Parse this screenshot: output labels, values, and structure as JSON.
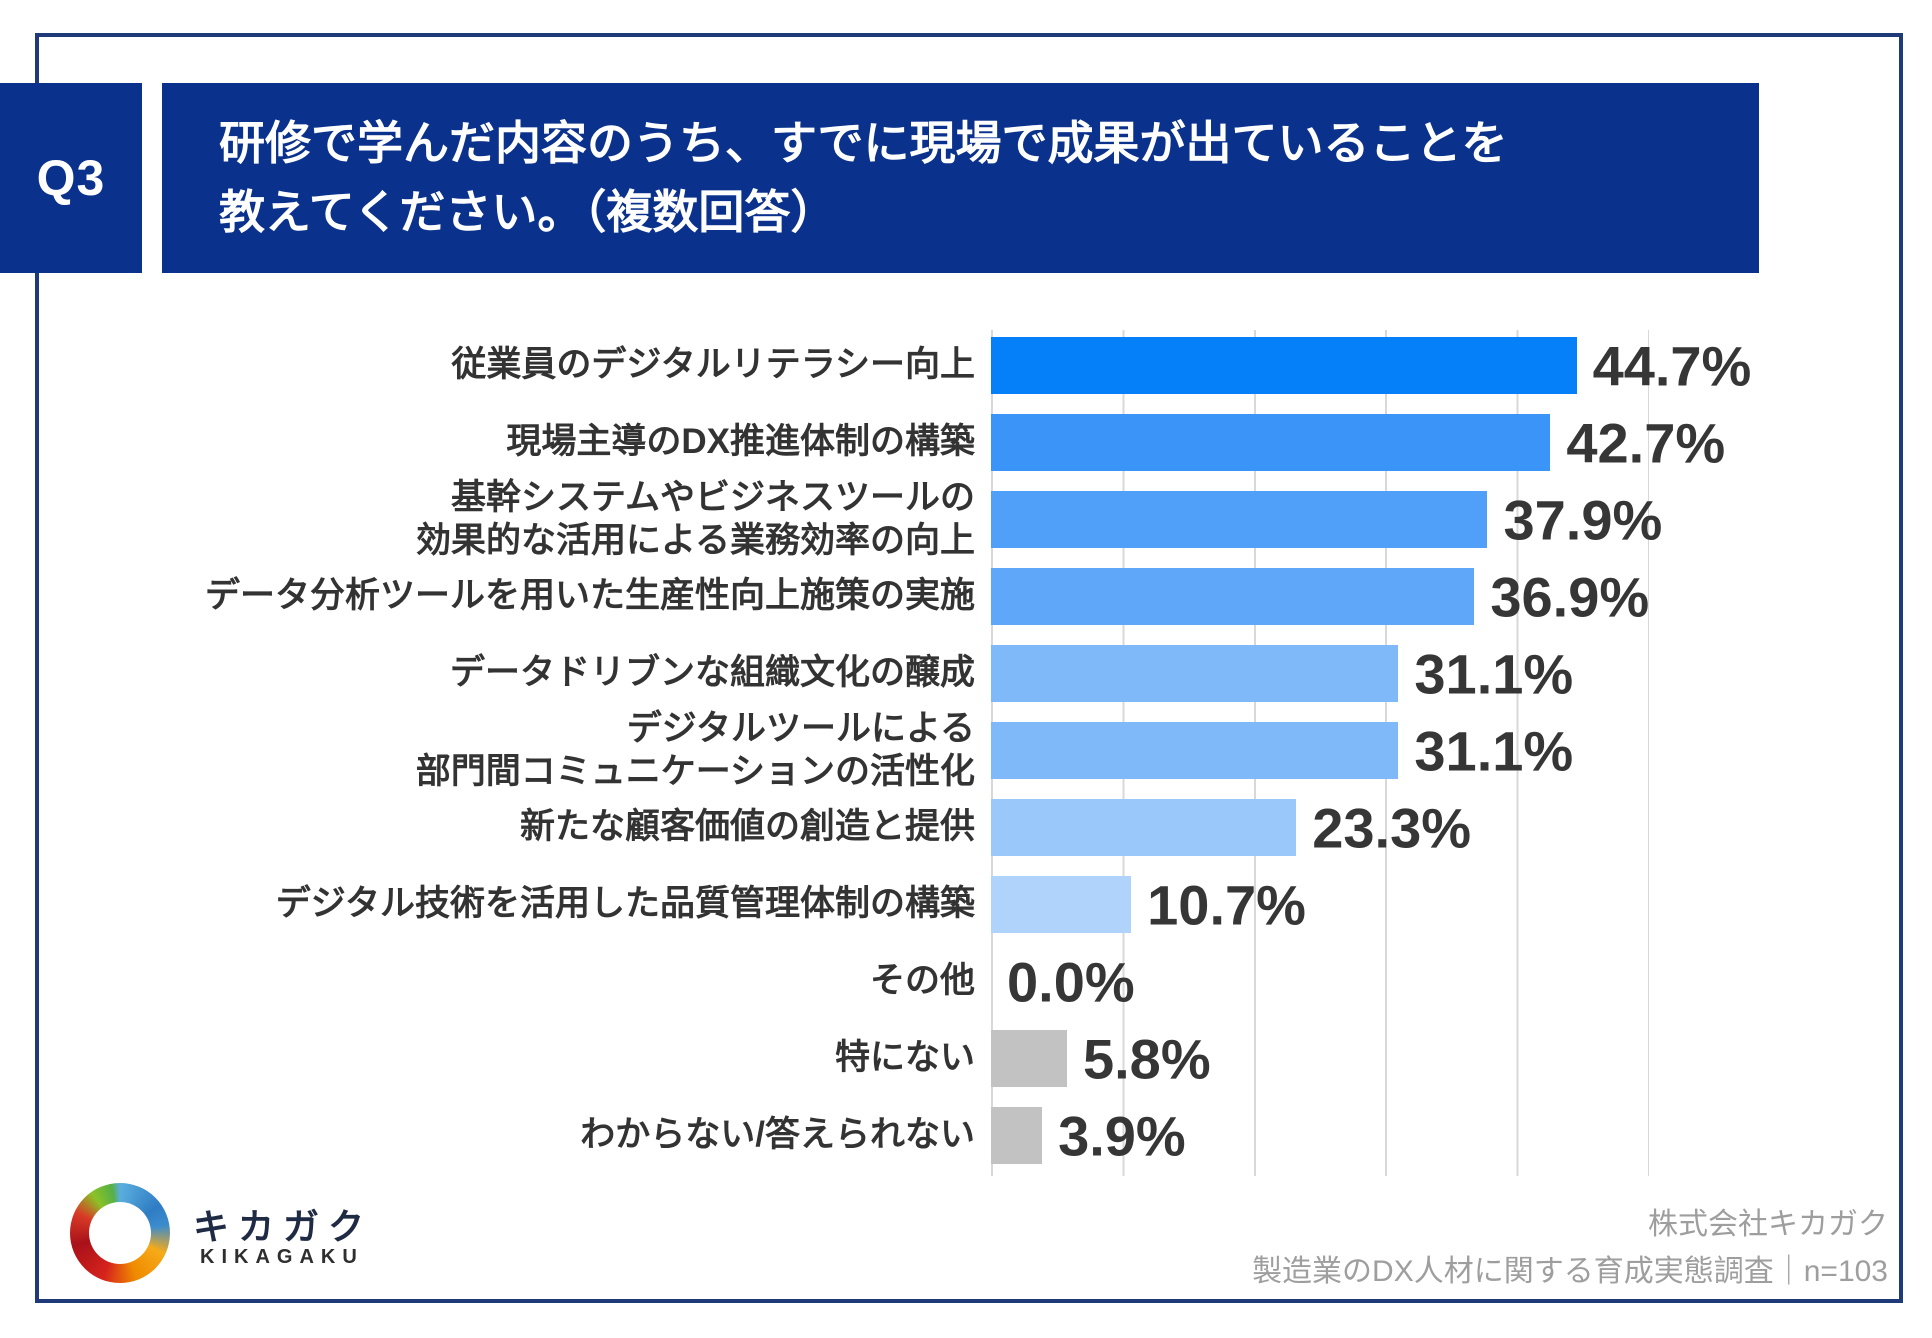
{
  "header": {
    "question_number": "Q3",
    "title_line1": "研修で学んだ内容のうち、すでに現場で成果が出ていることを",
    "title_line2": "教えてください。（複数回答）"
  },
  "chart_data": {
    "type": "bar",
    "orientation": "horizontal",
    "unit": "%",
    "xlim": [
      0,
      50
    ],
    "gridline_interval": 10,
    "grid": true,
    "legend": "none",
    "categories": [
      "従業員のデジタルリテラシー向上",
      "現場主導のDX推進体制の構築",
      "基幹システムやビジネスツールの\n効果的な活用による業務効率の向上",
      "データ分析ツールを用いた生産性向上施策の実施",
      "データドリブンな組織文化の醸成",
      "デジタルツールによる\n部門間コミュニケーションの活性化",
      "新たな顧客価値の創造と提供",
      "デジタル技術を活用した品質管理体制の構築",
      "その他",
      "特にない",
      "わからない/答えられない"
    ],
    "values": [
      44.7,
      42.7,
      37.9,
      36.9,
      31.1,
      31.1,
      23.3,
      10.7,
      0.0,
      5.8,
      3.9
    ],
    "value_labels": [
      "44.7%",
      "42.7%",
      "37.9%",
      "36.9%",
      "31.1%",
      "31.1%",
      "23.3%",
      "10.7%",
      "0.0%",
      "5.8%",
      "3.9%"
    ],
    "bar_colors": [
      "#0680f9",
      "#3b95f9",
      "#50a0f9",
      "#5fa8f9",
      "#7fb9fa",
      "#7fb9fa",
      "#9ac8fb",
      "#b0d3fc",
      "#c2c2c2",
      "#c2c2c2",
      "#c2c2c2"
    ]
  },
  "footer": {
    "brand_jp": "キカガク",
    "brand_en": "KIKAGAKU",
    "credit_line1": "株式会社キカガク",
    "credit_line2": "製造業のDX人材に関する育成実態調査｜n=103"
  },
  "colors": {
    "banner_blue": "#0a318c",
    "frame_blue": "#1e3a78",
    "gridline": "#d8d8d8",
    "value_text": "#363636",
    "category_text": "#333333",
    "credit_text": "#9e9e9e"
  }
}
